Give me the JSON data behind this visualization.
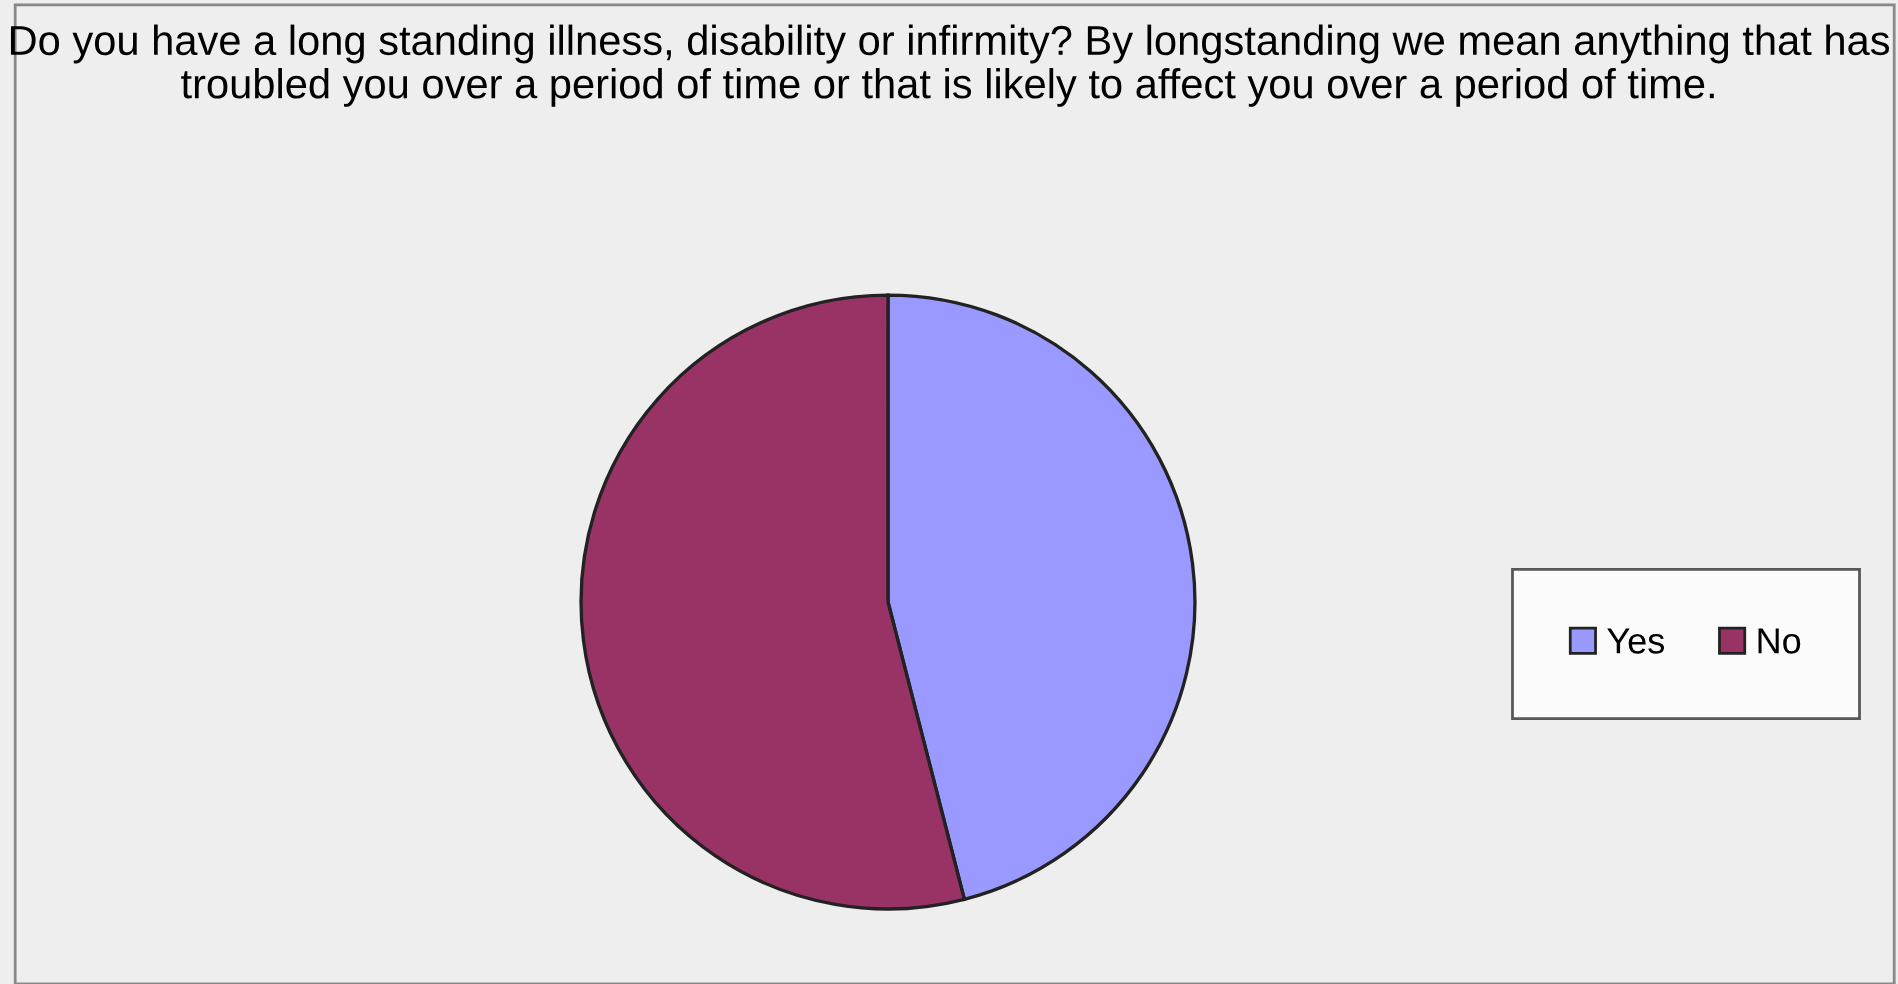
{
  "chart_data": {
    "type": "pie",
    "title": "Do you have a long standing illness, disability or infirmity? By longstanding we mean anything that has troubled you over a period of time or that is likely to affect you over a period of time.",
    "categories": [
      "Yes",
      "No"
    ],
    "values": [
      46,
      54
    ],
    "colors": [
      "#9999ff",
      "#993366"
    ],
    "legend": "right"
  }
}
